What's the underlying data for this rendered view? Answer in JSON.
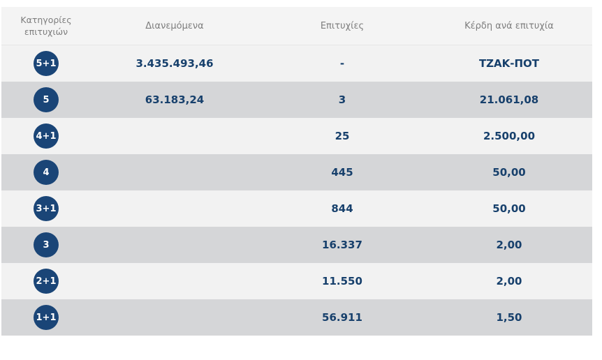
{
  "header": {
    "categories_line1": "Κατηγορίες",
    "categories_line2": "επιτυχιών",
    "distributed": "Διανεμόμενα",
    "winners": "Επιτυχίες",
    "prize_per_winner": "Κέρδη ανά επιτυχία"
  },
  "rows": [
    {
      "category": "5+1",
      "distributed": "3.435.493,46",
      "winners": "-",
      "prize": "ΤΖΑΚ-ΠΟΤ"
    },
    {
      "category": "5",
      "distributed": "63.183,24",
      "winners": "3",
      "prize": "21.061,08"
    },
    {
      "category": "4+1",
      "distributed": "",
      "winners": "25",
      "prize": "2.500,00"
    },
    {
      "category": "4",
      "distributed": "",
      "winners": "445",
      "prize": "50,00"
    },
    {
      "category": "3+1",
      "distributed": "",
      "winners": "844",
      "prize": "50,00"
    },
    {
      "category": "3",
      "distributed": "",
      "winners": "16.337",
      "prize": "2,00"
    },
    {
      "category": "2+1",
      "distributed": "",
      "winners": "11.550",
      "prize": "2,00"
    },
    {
      "category": "1+1",
      "distributed": "",
      "winners": "56.911",
      "prize": "1,50"
    }
  ],
  "colors": {
    "badge": "#1a4577",
    "text": "#17406c",
    "row_light": "#f2f2f2",
    "row_dark": "#d5d6d8"
  }
}
